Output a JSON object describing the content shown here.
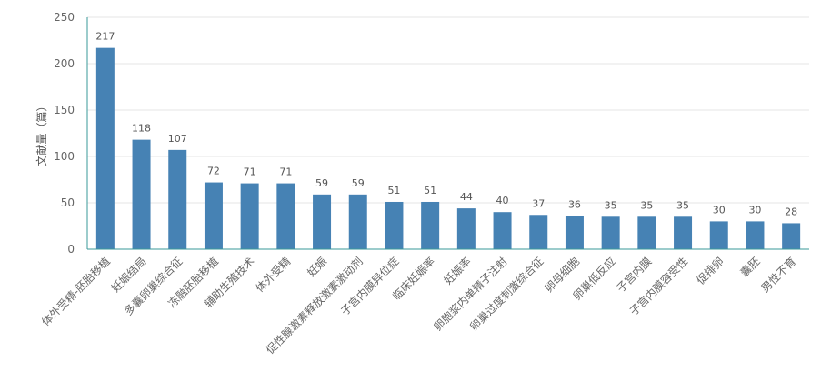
{
  "chart_data": {
    "type": "bar",
    "ylabel": "文献量（篇）",
    "ylim": [
      0,
      250
    ],
    "yticks": [
      0,
      50,
      100,
      150,
      200,
      250
    ],
    "grid": true,
    "categories": [
      "体外受精-胚胎移植",
      "妊娠结局",
      "多囊卵巢综合征",
      "冻融胚胎移植",
      "辅助生殖技术",
      "体外受精",
      "妊娠",
      "促性腺激素释放激素激动剂",
      "子宫内膜异位症",
      "临床妊娠率",
      "妊娠率",
      "卵胞浆内单精子注射",
      "卵巢过度刺激综合征",
      "卵母细胞",
      "卵巢低反应",
      "子宫内膜",
      "子宫内膜容受性",
      "促排卵",
      "囊胚",
      "男性不育"
    ],
    "values": [
      217,
      118,
      107,
      72,
      71,
      71,
      59,
      59,
      51,
      51,
      44,
      40,
      37,
      36,
      35,
      35,
      35,
      30,
      30,
      28
    ],
    "colors": {
      "bar": "#4682b4",
      "axis": "#3a9a9a",
      "grid": "#e6e6e6"
    }
  }
}
